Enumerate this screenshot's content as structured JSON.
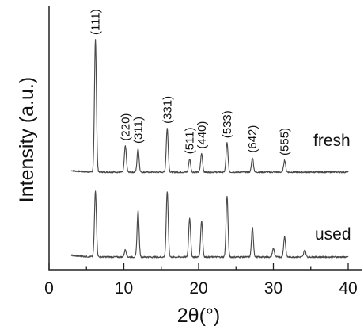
{
  "chart_data": {
    "type": "line",
    "title": "",
    "xlabel": "2θ(°)",
    "ylabel": "Intensity (a.u.)",
    "xlim": [
      0,
      40
    ],
    "xticks": [
      0,
      10,
      20,
      30,
      40
    ],
    "yticks_shown": false,
    "grid": false,
    "legend": "inline labels at right of each trace",
    "x_range_measured": [
      3,
      40
    ],
    "series": [
      {
        "name": "fresh",
        "baseline": 0,
        "peaks": [
          {
            "x": 6.2,
            "y": 100,
            "label": "(111)"
          },
          {
            "x": 10.2,
            "y": 20,
            "label": "(220)"
          },
          {
            "x": 11.9,
            "y": 18,
            "label": "(311)"
          },
          {
            "x": 15.8,
            "y": 33,
            "label": "(331)"
          },
          {
            "x": 18.8,
            "y": 10,
            "label": "(511)"
          },
          {
            "x": 20.4,
            "y": 14,
            "label": "(440)"
          },
          {
            "x": 23.8,
            "y": 22,
            "label": "(533)"
          },
          {
            "x": 27.2,
            "y": 11,
            "label": "(642)"
          },
          {
            "x": 31.5,
            "y": 9,
            "label": "(555)"
          }
        ]
      },
      {
        "name": "used",
        "baseline": 0,
        "peaks": [
          {
            "x": 6.2,
            "y": 45
          },
          {
            "x": 10.2,
            "y": 5
          },
          {
            "x": 11.9,
            "y": 32
          },
          {
            "x": 15.8,
            "y": 45
          },
          {
            "x": 18.8,
            "y": 27
          },
          {
            "x": 20.4,
            "y": 25
          },
          {
            "x": 23.8,
            "y": 42
          },
          {
            "x": 27.2,
            "y": 20
          },
          {
            "x": 30.0,
            "y": 6
          },
          {
            "x": 31.5,
            "y": 14
          },
          {
            "x": 34.2,
            "y": 5
          }
        ]
      }
    ]
  }
}
